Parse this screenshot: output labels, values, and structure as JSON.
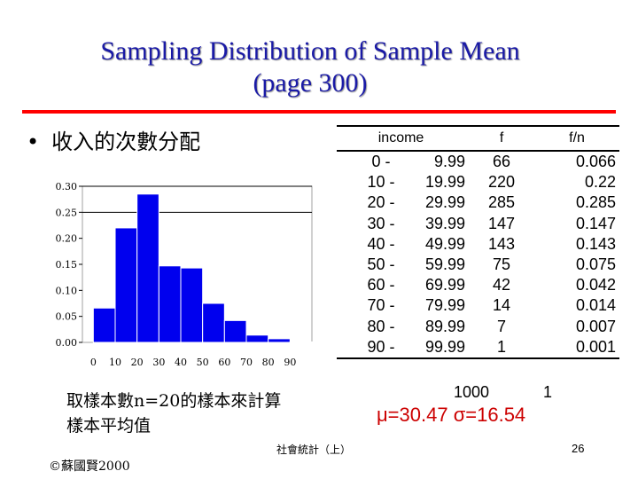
{
  "slide": {
    "title_line1": "Sampling Distribution of Sample Mean",
    "title_line2": "(page 300)",
    "bullet_symbol": "•",
    "bullet_text": "收入的次數分配",
    "sample_line1": "取樣本數n=20的樣本來計算",
    "sample_line2": "樣本平均值",
    "stats": "μ=30.47 σ=16.54",
    "footer_center": "社會統計（上）",
    "page_number": "26",
    "copyright": "©蘇國賢2000"
  },
  "colors": {
    "title": "#1a1aa6",
    "rule": "#ff0000",
    "bars": "#0000ee",
    "stats": "#cc0000"
  },
  "table": {
    "headers": [
      "income",
      "f",
      "f/n"
    ],
    "rows": [
      {
        "low": "0 -",
        "high": "9.99",
        "f": "66",
        "fn": "0.066"
      },
      {
        "low": "10 -",
        "high": "19.99",
        "f": "220",
        "fn": "0.22"
      },
      {
        "low": "20 -",
        "high": "29.99",
        "f": "285",
        "fn": "0.285"
      },
      {
        "low": "30 -",
        "high": "39.99",
        "f": "147",
        "fn": "0.147"
      },
      {
        "low": "40 -",
        "high": "49.99",
        "f": "143",
        "fn": "0.143"
      },
      {
        "low": "50 -",
        "high": "59.99",
        "f": "75",
        "fn": "0.075"
      },
      {
        "low": "60 -",
        "high": "69.99",
        "f": "42",
        "fn": "0.042"
      },
      {
        "low": "70 -",
        "high": "79.99",
        "f": "14",
        "fn": "0.014"
      },
      {
        "low": "80 -",
        "high": "89.99",
        "f": "7",
        "fn": "0.007"
      },
      {
        "low": "90 -",
        "high": "99.99",
        "f": "1",
        "fn": "0.001"
      }
    ],
    "total_f": "1000",
    "total_fn": "1"
  },
  "chart_data": {
    "type": "bar",
    "title": "",
    "xlabel": "",
    "ylabel": "",
    "x_bin_edges": [
      0,
      10,
      20,
      30,
      40,
      50,
      60,
      70,
      80,
      90,
      100
    ],
    "x_tick_labels": [
      "0",
      "10",
      "20",
      "30",
      "40",
      "50",
      "60",
      "70",
      "80",
      "90"
    ],
    "values": [
      0.066,
      0.22,
      0.285,
      0.147,
      0.143,
      0.075,
      0.042,
      0.014,
      0.007,
      0.001
    ],
    "y_tick_labels": [
      "0.00",
      "0.05",
      "0.10",
      "0.15",
      "0.20",
      "0.25",
      "0.30"
    ],
    "y_ticks": [
      0,
      0.05,
      0.1,
      0.15,
      0.2,
      0.25,
      0.3
    ],
    "ylim": [
      0,
      0.3
    ],
    "xlim": [
      -5,
      100
    ],
    "gridlines_at": [
      0.25,
      0.3
    ]
  }
}
